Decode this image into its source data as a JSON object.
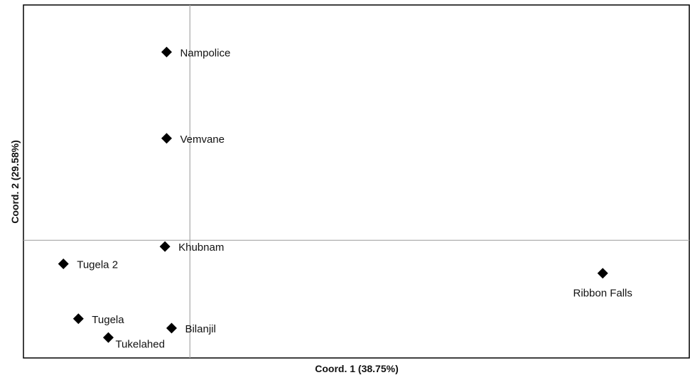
{
  "chart_data": {
    "type": "scatter",
    "xlabel": "Coord. 1 (38.75%)",
    "ylabel": "Coord. 2 (29.58%)",
    "xlim": [
      -1.0,
      3.0
    ],
    "ylim": [
      -0.75,
      1.5
    ],
    "grid": false,
    "legend": "none",
    "zero_lines": true,
    "marker": "diamond",
    "marker_color": "#000000",
    "zero_line_color": "#a6a6a6",
    "points": [
      {
        "label": "Nampolice",
        "x": -0.14,
        "y": 1.2,
        "label_pos": "right"
      },
      {
        "label": "Vemvane",
        "x": -0.14,
        "y": 0.65,
        "label_pos": "right"
      },
      {
        "label": "Khubnam",
        "x": -0.15,
        "y": -0.04,
        "label_pos": "right"
      },
      {
        "label": "Tugela 2",
        "x": -0.76,
        "y": -0.15,
        "label_pos": "right"
      },
      {
        "label": "Tugela",
        "x": -0.67,
        "y": -0.5,
        "label_pos": "right"
      },
      {
        "label": "Tukelahed",
        "x": -0.49,
        "y": -0.62,
        "label_pos": "below-right"
      },
      {
        "label": "Bilanjil",
        "x": -0.11,
        "y": -0.56,
        "label_pos": "right"
      },
      {
        "label": "Ribbon Falls",
        "x": 2.48,
        "y": -0.21,
        "label_pos": "below"
      }
    ]
  }
}
